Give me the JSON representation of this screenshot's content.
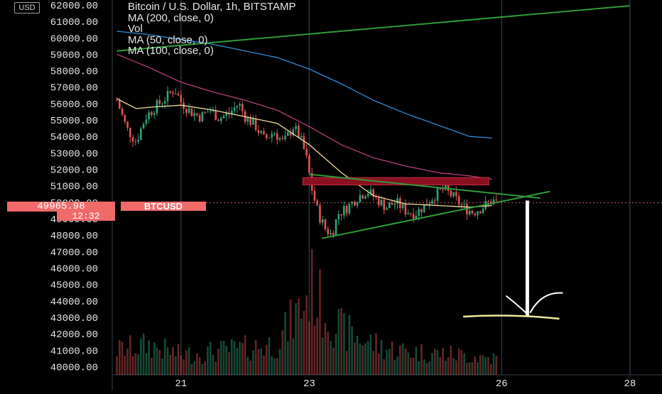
{
  "header": {
    "title": "Bitcoin / U.S. Dollar, 1h, BITSTAMP",
    "indicators": [
      "MA (200, close, 0)",
      "Vol",
      "MA (50, close, 0)",
      "MA (100, close, 0)"
    ]
  },
  "currency_label": "USD",
  "last_price": {
    "value": "49965.98",
    "countdown": "12:32",
    "symbol": "BTCUSD"
  },
  "colors": {
    "background": "#000000",
    "grid": "#2a3140",
    "up": "#2fa37a",
    "down": "#e05252",
    "ma200": "#2f8ad6",
    "ma50": "#f2dfa0",
    "ma100": "#b8407a",
    "trendline": "#2f9a3a",
    "resistance_zone": "#8a1020",
    "annotation": "#ffffff",
    "target_line": "#f0e8a0",
    "price_tag": "#f06a6a"
  },
  "chart_data": {
    "type": "candlestick",
    "title": "Bitcoin / U.S. Dollar, 1h, BITSTAMP",
    "x_ticks": [
      {
        "label": "21",
        "day": 21
      },
      {
        "label": "23",
        "day": 23
      },
      {
        "label": "26",
        "day": 26
      },
      {
        "label": "28",
        "day": 28
      }
    ],
    "x_range_days": [
      19.95,
      28.5
    ],
    "y_range": [
      39500,
      62300
    ],
    "y_ticks": [
      "40000.00",
      "41000.00",
      "42000.00",
      "43000.00",
      "44000.00",
      "45000.00",
      "46000.00",
      "47000.00",
      "48000.00",
      "49000.00",
      "50000.00",
      "51000.00",
      "52000.00",
      "53000.00",
      "54000.00",
      "55000.00",
      "56000.00",
      "57000.00",
      "58000.00",
      "59000.00",
      "60000.00",
      "61000.00",
      "62000.00"
    ],
    "y_tick_values": [
      40000,
      41000,
      42000,
      43000,
      44000,
      45000,
      46000,
      47000,
      48000,
      49000,
      50000,
      51000,
      52000,
      53000,
      54000,
      55000,
      56000,
      57000,
      58000,
      59000,
      60000,
      61000,
      62000
    ],
    "grid": true,
    "price_path": [
      [
        20.0,
        56200
      ],
      [
        20.15,
        54500
      ],
      [
        20.3,
        53700
      ],
      [
        20.45,
        55200
      ],
      [
        20.6,
        55800
      ],
      [
        20.75,
        56300
      ],
      [
        20.9,
        56900
      ],
      [
        21.0,
        56100
      ],
      [
        21.15,
        55500
      ],
      [
        21.3,
        55200
      ],
      [
        21.45,
        55600
      ],
      [
        21.6,
        55100
      ],
      [
        21.75,
        55400
      ],
      [
        21.9,
        56000
      ],
      [
        22.0,
        55200
      ],
      [
        22.15,
        54700
      ],
      [
        22.3,
        53800
      ],
      [
        22.45,
        54300
      ],
      [
        22.6,
        53600
      ],
      [
        22.75,
        54600
      ],
      [
        22.85,
        54000
      ],
      [
        22.95,
        52800
      ],
      [
        23.05,
        50600
      ],
      [
        23.15,
        49200
      ],
      [
        23.25,
        48400
      ],
      [
        23.35,
        48000
      ],
      [
        23.45,
        49300
      ],
      [
        23.6,
        49700
      ],
      [
        23.75,
        50300
      ],
      [
        23.9,
        50700
      ],
      [
        24.05,
        50200
      ],
      [
        24.2,
        49700
      ],
      [
        24.35,
        50000
      ],
      [
        24.5,
        49500
      ],
      [
        24.65,
        49300
      ],
      [
        24.8,
        49800
      ],
      [
        24.95,
        50400
      ],
      [
        25.1,
        50800
      ],
      [
        25.25,
        50300
      ],
      [
        25.4,
        49700
      ],
      [
        25.55,
        49400
      ],
      [
        25.7,
        49700
      ],
      [
        25.85,
        50100
      ],
      [
        25.95,
        49950
      ]
    ],
    "volume_path": [
      [
        20.0,
        1500
      ],
      [
        20.5,
        1800
      ],
      [
        21.0,
        1200
      ],
      [
        21.5,
        1400
      ],
      [
        22.0,
        1600
      ],
      [
        22.5,
        1900
      ],
      [
        22.9,
        4200
      ],
      [
        23.05,
        5400
      ],
      [
        23.15,
        4400
      ],
      [
        23.3,
        3600
      ],
      [
        23.5,
        2700
      ],
      [
        23.8,
        2200
      ],
      [
        24.2,
        1600
      ],
      [
        24.6,
        1400
      ],
      [
        25.0,
        1300
      ],
      [
        25.4,
        1200
      ],
      [
        25.9,
        1000
      ]
    ],
    "volume_max": 6000,
    "series": [
      {
        "name": "MA (200, close, 0)",
        "points": [
          [
            20.0,
            60400
          ],
          [
            20.5,
            60200
          ],
          [
            21.0,
            59900
          ],
          [
            21.5,
            59600
          ],
          [
            22.0,
            59200
          ],
          [
            22.5,
            58800
          ],
          [
            23.0,
            58100
          ],
          [
            23.5,
            57200
          ],
          [
            24.0,
            56200
          ],
          [
            24.5,
            55400
          ],
          [
            25.0,
            54700
          ],
          [
            25.5,
            54000
          ],
          [
            25.85,
            53900
          ]
        ]
      },
      {
        "name": "MA (100, close, 0)",
        "points": [
          [
            20.0,
            59000
          ],
          [
            20.5,
            58200
          ],
          [
            21.0,
            57300
          ],
          [
            21.5,
            56700
          ],
          [
            22.0,
            56200
          ],
          [
            22.5,
            55600
          ],
          [
            23.0,
            54600
          ],
          [
            23.5,
            53500
          ],
          [
            24.0,
            52700
          ],
          [
            24.5,
            52200
          ],
          [
            25.0,
            51800
          ],
          [
            25.5,
            51600
          ],
          [
            25.85,
            51400
          ]
        ]
      },
      {
        "name": "MA (50, close, 0)",
        "points": [
          [
            20.0,
            56300
          ],
          [
            20.3,
            55700
          ],
          [
            20.6,
            55800
          ],
          [
            21.0,
            55900
          ],
          [
            21.5,
            55600
          ],
          [
            22.0,
            55200
          ],
          [
            22.5,
            54800
          ],
          [
            23.0,
            53500
          ],
          [
            23.5,
            51800
          ],
          [
            24.0,
            50400
          ],
          [
            24.5,
            49900
          ],
          [
            25.0,
            49800
          ],
          [
            25.5,
            49700
          ],
          [
            25.85,
            49800
          ]
        ]
      }
    ],
    "drawings": {
      "upper_channel_line": [
        [
          20.0,
          59200
        ],
        [
          28.0,
          61950
        ]
      ],
      "triangle_top": [
        [
          23.0,
          51700
        ],
        [
          26.6,
          50250
        ]
      ],
      "triangle_bottom": [
        [
          23.2,
          47800
        ],
        [
          26.75,
          50650
        ]
      ],
      "resistance_zone": [
        [
          22.9,
          51500
        ],
        [
          25.8,
          51050
        ]
      ],
      "arrow_from_to": [
        [
          26.4,
          50100
        ],
        [
          26.4,
          43100
        ]
      ],
      "target_level": {
        "from_day": 25.4,
        "to_day": 26.9,
        "price": 43000
      }
    }
  }
}
